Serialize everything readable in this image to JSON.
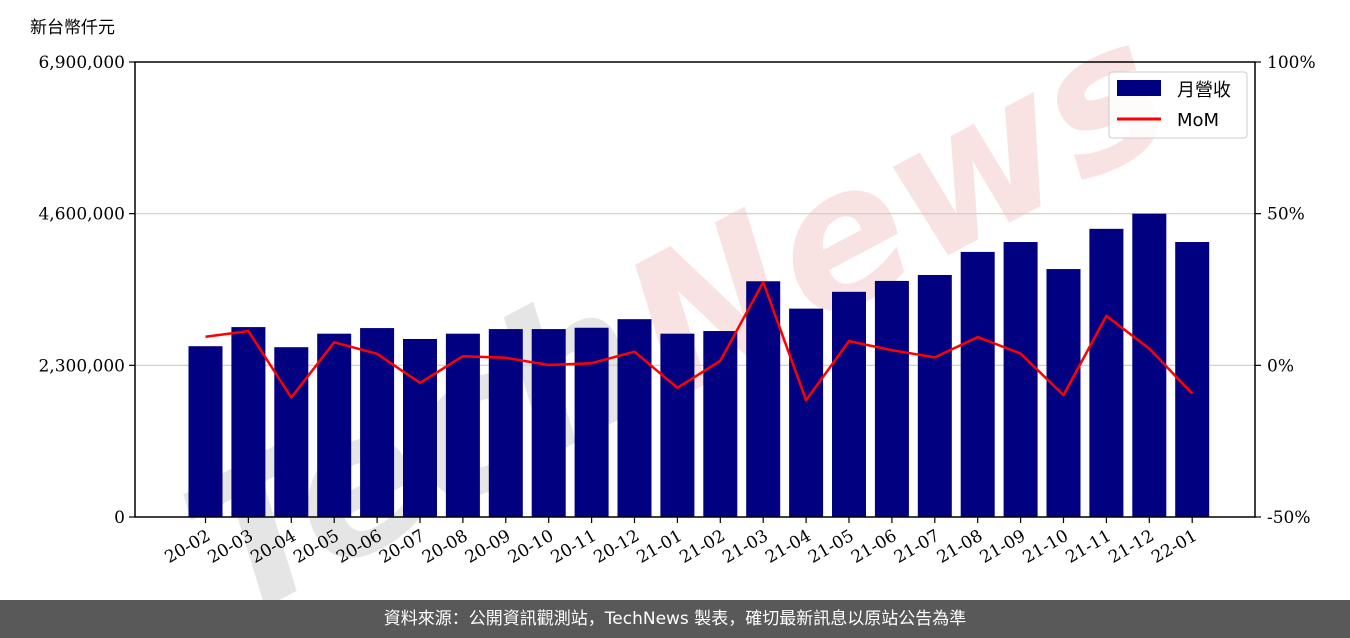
{
  "chart_data": {
    "type": "bar",
    "unit_label": "新台幣仟元",
    "categories": [
      "20-02",
      "20-03",
      "20-04",
      "20-05",
      "20-06",
      "20-07",
      "20-08",
      "20-09",
      "20-10",
      "20-11",
      "20-12",
      "21-01",
      "21-02",
      "21-03",
      "21-04",
      "21-05",
      "21-06",
      "21-07",
      "21-08",
      "21-09",
      "21-10",
      "21-11",
      "21-12",
      "22-01"
    ],
    "series": [
      {
        "name": "月營收",
        "axis": "left",
        "type": "bar",
        "color": "#000080",
        "values": [
          2590000,
          2880000,
          2575000,
          2780000,
          2865000,
          2700000,
          2780000,
          2850000,
          2850000,
          2870000,
          3000000,
          2780000,
          2820000,
          3575000,
          3160000,
          3415000,
          3580000,
          3670000,
          4020000,
          4170000,
          3760000,
          4370000,
          4600000,
          4170000
        ]
      },
      {
        "name": "MoM",
        "axis": "right",
        "type": "line",
        "color": "#ff0000",
        "values": [
          0.094,
          0.113,
          -0.106,
          0.076,
          0.038,
          -0.058,
          0.03,
          0.025,
          0.001,
          0.007,
          0.045,
          -0.074,
          0.015,
          0.274,
          -0.115,
          0.08,
          0.05,
          0.026,
          0.093,
          0.039,
          -0.098,
          0.163,
          0.055,
          -0.093
        ]
      }
    ],
    "left_axis": {
      "ylim": [
        0,
        6900000
      ],
      "ticks": [
        0,
        2300000,
        4600000,
        6900000
      ],
      "tick_labels": [
        "0",
        "2,300,000",
        "4,600,000",
        "6,900,000"
      ]
    },
    "right_axis": {
      "ylim": [
        -0.5,
        1.0
      ],
      "ticks": [
        -0.5,
        0,
        0.5,
        1.0
      ],
      "tick_labels": [
        "-50%",
        "0%",
        "50%",
        "100%"
      ]
    },
    "grid": "horizontal",
    "legend_position": "top-right"
  },
  "watermark": {
    "text": "TechNews",
    "color_tech": "#9a9a9a",
    "color_news": "#f2c2c2"
  },
  "footer": {
    "text": "資料來源：公開資訊觀測站，TechNews 製表，確切最新訊息以原站公告為準"
  }
}
